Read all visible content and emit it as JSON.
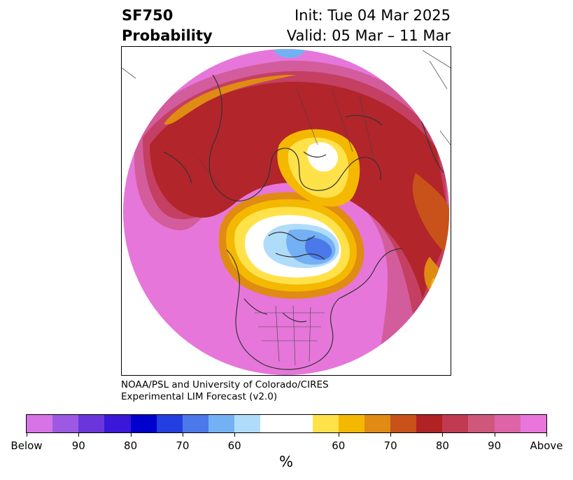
{
  "header": {
    "title_line1": "SF750",
    "title_line2": "Probability",
    "init": "Init: Tue 04 Mar 2025",
    "valid": "Valid: 05 Mar – 11 Mar"
  },
  "credit": {
    "line1": "NOAA/PSL and University of Colorado/CIRES",
    "line2": "Experimental LIM Forecast (v2.0)"
  },
  "colorbar": {
    "colors": [
      "#d673e6",
      "#9d59e3",
      "#6a36db",
      "#3a17d9",
      "#0000cc",
      "#233fe0",
      "#4b79ea",
      "#74b1f4",
      "#afdcf9",
      "#ffffff",
      "#ffe24a",
      "#f4b800",
      "#e08b13",
      "#c8521a",
      "#b02224",
      "#c23a51",
      "#d0577c",
      "#de64a8",
      "#e876dc"
    ],
    "ticks": [
      "Below",
      "90",
      "80",
      "70",
      "60",
      "60",
      "70",
      "80",
      "90",
      "Above"
    ],
    "unit": "%"
  },
  "map": {
    "projection": "north-polar-stereographic",
    "colors": {
      "above": "#e676da",
      "p90": "#d35c9d",
      "p85": "#c43f62",
      "p80": "#b2252b",
      "p75": "#c8521a",
      "p70": "#e08b13",
      "p65": "#f4b800",
      "p60": "#ffe24a",
      "neutral": "#ffffff",
      "b60": "#afdcf9",
      "b65": "#74b1f4",
      "b70": "#4b79ea",
      "coast": "#333333"
    }
  }
}
